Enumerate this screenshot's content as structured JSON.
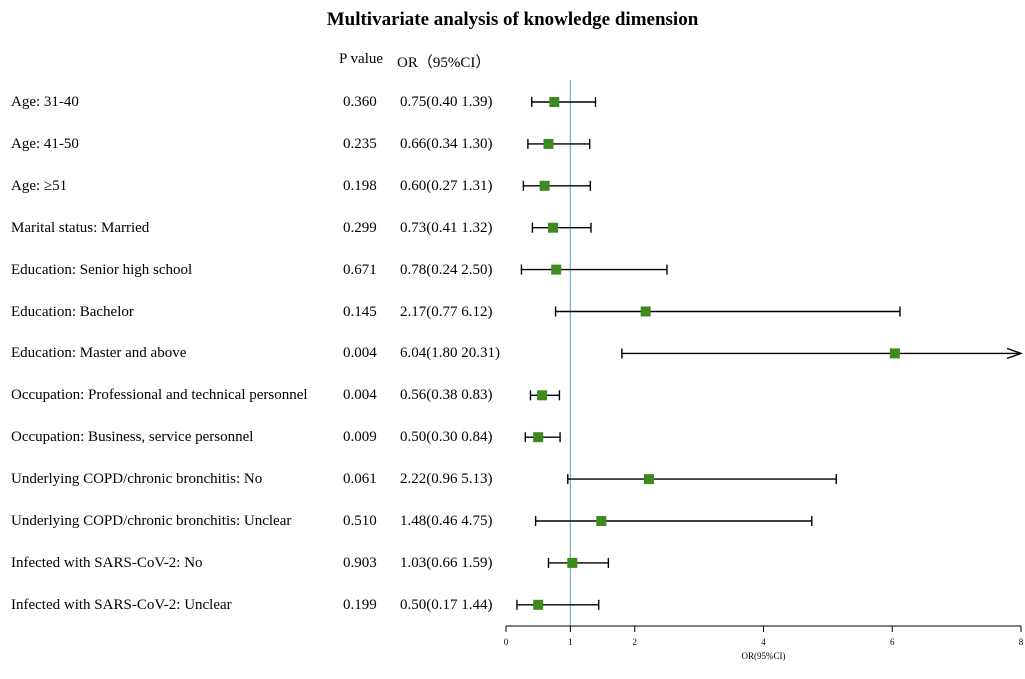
{
  "title": "Multivariate analysis of knowledge dimension",
  "headers": {
    "p_value": "P value",
    "or_ci": "OR（95%CI）"
  },
  "chart_data": {
    "type": "forest",
    "title": "Multivariate analysis of knowledge dimension",
    "xlabel": "OR(95%CI)",
    "xlim": [
      0,
      8
    ],
    "xticks": [
      0,
      1,
      2,
      4,
      6,
      8
    ],
    "reference_line": 1,
    "marker_color": "#3d8a1e",
    "reference_color": "#7fb2c8",
    "rows": [
      {
        "label": "Age: 31-40",
        "p": "0.360",
        "or_text": "0.75(0.40 1.39)",
        "or": 0.75,
        "lo": 0.4,
        "hi": 1.39
      },
      {
        "label": "Age: 41-50",
        "p": "0.235",
        "or_text": "0.66(0.34 1.30)",
        "or": 0.66,
        "lo": 0.34,
        "hi": 1.3
      },
      {
        "label": "Age: ≥51",
        "p": "0.198",
        "or_text": "0.60(0.27 1.31)",
        "or": 0.6,
        "lo": 0.27,
        "hi": 1.31
      },
      {
        "label": "Marital status: Married",
        "p": "0.299",
        "or_text": "0.73(0.41 1.32)",
        "or": 0.73,
        "lo": 0.41,
        "hi": 1.32
      },
      {
        "label": "Education: Senior high school",
        "p": "0.671",
        "or_text": "0.78(0.24 2.50)",
        "or": 0.78,
        "lo": 0.24,
        "hi": 2.5
      },
      {
        "label": "Education: Bachelor",
        "p": "0.145",
        "or_text": "2.17(0.77 6.12)",
        "or": 2.17,
        "lo": 0.77,
        "hi": 6.12
      },
      {
        "label": "Education: Master and above",
        "p": "0.004",
        "or_text": "6.04(1.80 20.31)",
        "or": 6.04,
        "lo": 1.8,
        "hi": 20.31
      },
      {
        "label": "Occupation: Professional and technical personnel",
        "p": "0.004",
        "or_text": "0.56(0.38 0.83)",
        "or": 0.56,
        "lo": 0.38,
        "hi": 0.83
      },
      {
        "label": "Occupation: Business, service personnel",
        "p": "0.009",
        "or_text": "0.50(0.30 0.84)",
        "or": 0.5,
        "lo": 0.3,
        "hi": 0.84
      },
      {
        "label": "Underlying COPD/chronic bronchitis: No",
        "p": "0.061",
        "or_text": "2.22(0.96 5.13)",
        "or": 2.22,
        "lo": 0.96,
        "hi": 5.13
      },
      {
        "label": "Underlying COPD/chronic bronchitis: Unclear",
        "p": "0.510",
        "or_text": "1.48(0.46 4.75)",
        "or": 1.48,
        "lo": 0.46,
        "hi": 4.75
      },
      {
        "label": "Infected with SARS-CoV-2: No",
        "p": "0.903",
        "or_text": "1.03(0.66 1.59)",
        "or": 1.03,
        "lo": 0.66,
        "hi": 1.59
      },
      {
        "label": "Infected with SARS-CoV-2: Unclear",
        "p": "0.199",
        "or_text": "0.50(0.17 1.44)",
        "or": 0.5,
        "lo": 0.17,
        "hi": 1.44
      }
    ]
  }
}
